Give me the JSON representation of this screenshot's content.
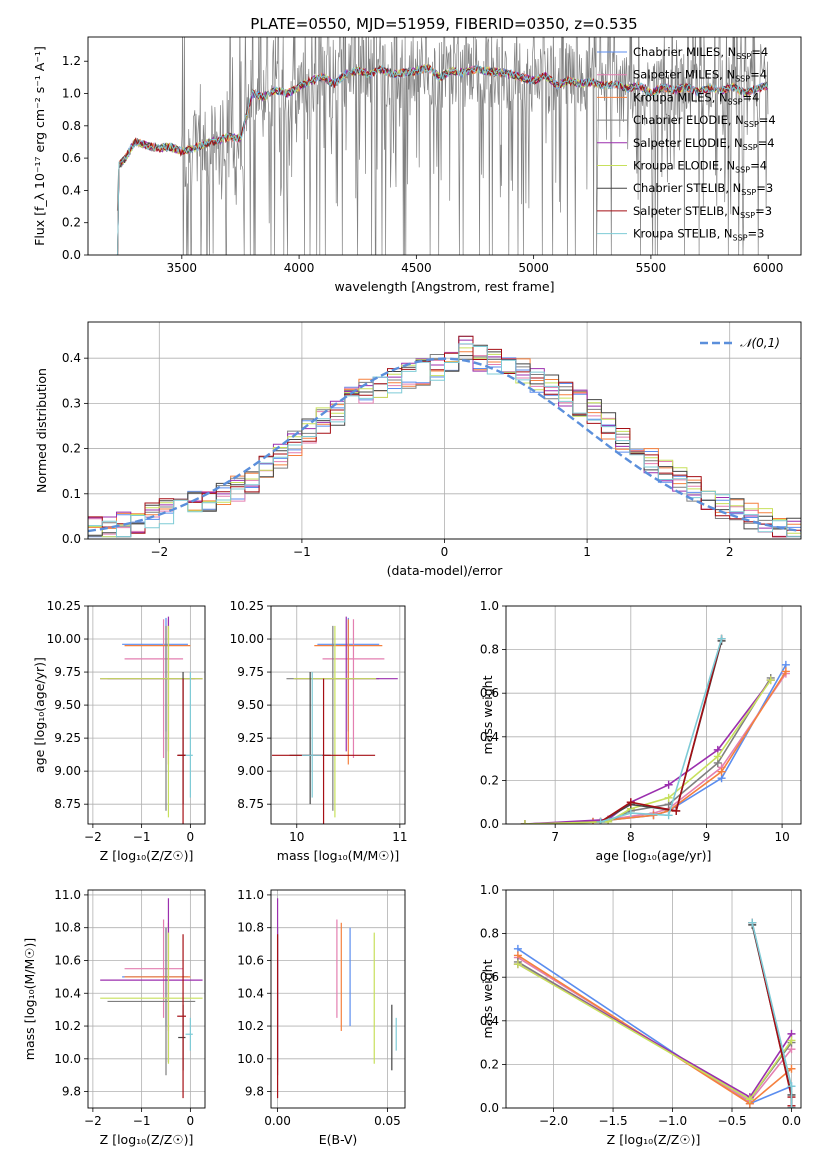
{
  "title": "PLATE=0550, MJD=51959, FIBERID=0350, z=0.535",
  "colors": {
    "Chabrier MILES": "#5b8def",
    "Salpeter MILES": "#e37fb1",
    "Kroupa MILES": "#f5803e",
    "Chabrier ELODIE": "#7f7f7f",
    "Salpeter ELODIE": "#9b2fae",
    "Kroupa ELODIE": "#c7e05c",
    "Chabrier STELIB": "#454545",
    "Salpeter STELIB": "#a50f15",
    "Kroupa STELIB": "#7ecbd6"
  },
  "chart_data": [
    {
      "type": "line",
      "panel": "spectrum",
      "xlabel": "wavelength [Angstrom, rest frame]",
      "ylabel": "Flux [f_λ 10⁻¹⁷ erg cm⁻² s⁻¹ A⁻¹]",
      "xlim": [
        3100,
        6140
      ],
      "ylim": [
        0,
        1.35
      ],
      "xticks": [
        3500,
        4000,
        4500,
        5000,
        5500,
        6000
      ],
      "yticks": [
        0.0,
        0.2,
        0.4,
        0.6,
        0.8,
        1.0,
        1.2
      ],
      "grid": false,
      "legend_position": "top-right",
      "legend": [
        {
          "label": "Chabrier MILES, N",
          "sub": "SSP",
          "tail": "=4"
        },
        {
          "label": "Salpeter MILES, N",
          "sub": "SSP",
          "tail": "=4"
        },
        {
          "label": "Kroupa MILES, N",
          "sub": "SSP",
          "tail": "=4"
        },
        {
          "label": "Chabrier ELODIE, N",
          "sub": "SSP",
          "tail": "=4"
        },
        {
          "label": "Salpeter ELODIE, N",
          "sub": "SSP",
          "tail": "=4"
        },
        {
          "label": "Kroupa ELODIE, N",
          "sub": "SSP",
          "tail": "=4"
        },
        {
          "label": "Chabrier STELIB, N",
          "sub": "SSP",
          "tail": "=3"
        },
        {
          "label": "Salpeter STELIB, N",
          "sub": "SSP",
          "tail": "=3"
        },
        {
          "label": "Kroupa STELIB, N",
          "sub": "SSP",
          "tail": "=3"
        }
      ],
      "model_points": {
        "x": [
          3220,
          3230,
          3260,
          3300,
          3350,
          3400,
          3450,
          3500,
          3550,
          3600,
          3650,
          3700,
          3750,
          3800,
          3850,
          3900,
          3950,
          4000,
          4050,
          4100,
          4150,
          4200,
          4250,
          4300,
          4350,
          4400,
          4450,
          4500,
          4550,
          4600,
          4650,
          4700,
          4750,
          4800,
          4850,
          4900,
          4950,
          5000,
          5050,
          5100,
          5150,
          5200,
          5250,
          5300,
          5350,
          5400,
          5450,
          5500,
          5550,
          5600,
          5650,
          5700,
          5750,
          5800,
          5850,
          5900,
          5950,
          6000
        ],
        "y": [
          0.0,
          0.55,
          0.6,
          0.7,
          0.68,
          0.66,
          0.67,
          0.64,
          0.66,
          0.69,
          0.71,
          0.73,
          0.72,
          1.0,
          0.98,
          1.02,
          1.0,
          1.04,
          1.08,
          1.1,
          1.06,
          1.12,
          1.14,
          1.12,
          1.15,
          1.12,
          1.13,
          1.14,
          1.16,
          1.1,
          1.14,
          1.13,
          1.15,
          1.14,
          1.13,
          1.12,
          1.1,
          1.08,
          1.11,
          1.05,
          1.08,
          1.06,
          1.07,
          1.05,
          1.06,
          1.03,
          1.05,
          1.0,
          1.04,
          1.02,
          1.04,
          1.01,
          1.03,
          1.02,
          1.04,
          1.0,
          1.03,
          1.05
        ]
      }
    },
    {
      "type": "step",
      "panel": "residual-histogram",
      "xlabel": "(data-model)/error",
      "ylabel": "Normed distribution",
      "xlim": [
        -2.5,
        2.5
      ],
      "ylim": [
        0,
        0.48
      ],
      "xticks": [
        -2,
        -1,
        0,
        1,
        2
      ],
      "yticks": [
        0.0,
        0.1,
        0.2,
        0.3,
        0.4
      ],
      "grid": true,
      "legend_position": "top-right",
      "reference_curve": "𝒩(0,1)",
      "bin_width": 0.1,
      "bin_start": -2.5,
      "hist_base": [
        0.02,
        0.02,
        0.03,
        0.04,
        0.05,
        0.06,
        0.07,
        0.08,
        0.09,
        0.1,
        0.11,
        0.13,
        0.16,
        0.18,
        0.21,
        0.24,
        0.26,
        0.28,
        0.31,
        0.33,
        0.34,
        0.35,
        0.36,
        0.37,
        0.38,
        0.39,
        0.42,
        0.4,
        0.39,
        0.38,
        0.37,
        0.35,
        0.34,
        0.32,
        0.3,
        0.28,
        0.25,
        0.22,
        0.19,
        0.17,
        0.15,
        0.13,
        0.11,
        0.09,
        0.07,
        0.06,
        0.05,
        0.04,
        0.03,
        0.02
      ]
    },
    {
      "type": "errorbar",
      "panel": "age-vs-metallicity",
      "xlabel": "Z [log₁₀(Z/Z☉)]",
      "ylabel": "age  [log₁₀(age/yr)]",
      "xlim": [
        -2.1,
        0.3
      ],
      "ylim": [
        8.6,
        10.25
      ],
      "xticks": [
        -2,
        -1,
        0
      ],
      "yticks": [
        8.75,
        9.0,
        9.25,
        9.5,
        9.75,
        10.0,
        10.25
      ],
      "grid": true
    },
    {
      "type": "errorbar",
      "panel": "age-vs-mass",
      "xlabel": "mass [log₁₀(M/M☉)]",
      "xlim": [
        9.75,
        11.05
      ],
      "ylim": [
        8.6,
        10.25
      ],
      "xticks": [
        10,
        11
      ],
      "yticks": [
        8.75,
        9.0,
        9.25,
        9.5,
        9.75,
        10.0,
        10.25
      ],
      "grid": true
    },
    {
      "type": "line",
      "panel": "mass-weight-vs-age",
      "xlabel": "age  [log₁₀(age/yr)]",
      "ylabel": "mass weight",
      "xlim": [
        6.35,
        10.25
      ],
      "ylim": [
        0,
        1.0
      ],
      "xticks": [
        7,
        8,
        9,
        10
      ],
      "yticks": [
        0.0,
        0.2,
        0.4,
        0.6,
        0.8,
        1.0
      ],
      "grid": true,
      "series": [
        {
          "name": "Chabrier MILES",
          "x": [
            6.6,
            7.5,
            8.3,
            8.5,
            9.2,
            10.05
          ],
          "y": [
            0.0,
            0.01,
            0.04,
            0.06,
            0.21,
            0.73
          ]
        },
        {
          "name": "Salpeter MILES",
          "x": [
            6.6,
            7.5,
            8.3,
            8.5,
            9.2,
            10.05
          ],
          "y": [
            0.0,
            0.01,
            0.05,
            0.07,
            0.26,
            0.69
          ]
        },
        {
          "name": "Kroupa MILES",
          "x": [
            6.6,
            7.5,
            8.3,
            8.5,
            9.2,
            10.05
          ],
          "y": [
            0.0,
            0.01,
            0.04,
            0.06,
            0.24,
            0.7
          ]
        },
        {
          "name": "Chabrier ELODIE",
          "x": [
            6.6,
            7.7,
            8.0,
            8.5,
            9.15,
            9.85
          ],
          "y": [
            0.0,
            0.01,
            0.06,
            0.09,
            0.28,
            0.67
          ]
        },
        {
          "name": "Salpeter ELODIE",
          "x": [
            6.6,
            7.7,
            8.0,
            8.5,
            9.15,
            9.85
          ],
          "y": [
            0.0,
            0.02,
            0.1,
            0.18,
            0.34,
            0.66
          ]
        },
        {
          "name": "Kroupa ELODIE",
          "x": [
            6.6,
            7.7,
            8.0,
            8.5,
            9.15,
            9.85
          ],
          "y": [
            0.0,
            0.01,
            0.07,
            0.12,
            0.31,
            0.66
          ]
        },
        {
          "name": "Chabrier STELIB",
          "x": [
            7.6,
            8.0,
            8.6,
            9.2
          ],
          "y": [
            0.01,
            0.09,
            0.06,
            0.84
          ]
        },
        {
          "name": "Salpeter STELIB",
          "x": [
            7.6,
            8.0,
            8.6,
            9.2
          ],
          "y": [
            0.01,
            0.1,
            0.06,
            0.85
          ]
        },
        {
          "name": "Kroupa STELIB",
          "x": [
            7.6,
            8.0,
            8.5,
            9.2
          ],
          "y": [
            0.01,
            0.05,
            0.04,
            0.85
          ]
        }
      ]
    },
    {
      "type": "errorbar",
      "panel": "mass-vs-metallicity",
      "xlabel": "Z [log₁₀(Z/Z☉)]",
      "ylabel": "mass [log₁₀(M/M☉)]",
      "xlim": [
        -2.1,
        0.3
      ],
      "ylim": [
        9.7,
        11.03
      ],
      "xticks": [
        -2,
        -1,
        0
      ],
      "yticks": [
        9.8,
        10.0,
        10.2,
        10.4,
        10.6,
        10.8,
        11.0
      ],
      "grid": true
    },
    {
      "type": "errorbar",
      "panel": "mass-vs-ebv",
      "xlabel": "E(B-V)",
      "xlim": [
        -0.003,
        0.058
      ],
      "ylim": [
        9.7,
        11.03
      ],
      "xticks": [
        0.0,
        0.05
      ],
      "xtick_labels": [
        "0.00",
        "0.05"
      ],
      "yticks": [
        9.8,
        10.0,
        10.2,
        10.4,
        10.6,
        10.8,
        11.0
      ],
      "grid": true
    },
    {
      "type": "line",
      "panel": "mass-weight-vs-metallicity",
      "xlabel": "Z [log₁₀(Z/Z☉)]",
      "ylabel": "mass weight",
      "xlim": [
        -2.4,
        0.08
      ],
      "ylim": [
        0,
        1.0
      ],
      "xticks": [
        -2.0,
        -1.5,
        -1.0,
        -0.5,
        0.0
      ],
      "xtick_labels": [
        "−2.0",
        "−1.5",
        "−1.0",
        "−0.5",
        "0.0"
      ],
      "yticks": [
        0.0,
        0.2,
        0.4,
        0.6,
        0.8,
        1.0
      ],
      "grid": true,
      "series": [
        {
          "name": "Chabrier MILES",
          "x": [
            -2.3,
            -0.35,
            0.0
          ],
          "y": [
            0.73,
            0.02,
            0.1
          ]
        },
        {
          "name": "Salpeter MILES",
          "x": [
            -2.3,
            -0.35,
            0.0
          ],
          "y": [
            0.69,
            0.03,
            0.27
          ]
        },
        {
          "name": "Kroupa MILES",
          "x": [
            -2.3,
            -0.35,
            0.0
          ],
          "y": [
            0.7,
            0.02,
            0.18
          ]
        },
        {
          "name": "Chabrier ELODIE",
          "x": [
            -2.3,
            -0.35,
            0.0
          ],
          "y": [
            0.67,
            0.04,
            0.3
          ]
        },
        {
          "name": "Salpeter ELODIE",
          "x": [
            -2.3,
            -0.35,
            0.0
          ],
          "y": [
            0.66,
            0.05,
            0.34
          ]
        },
        {
          "name": "Kroupa ELODIE",
          "x": [
            -2.3,
            -0.35,
            0.0
          ],
          "y": [
            0.66,
            0.04,
            0.31
          ]
        },
        {
          "name": "Chabrier STELIB",
          "x": [
            -0.33,
            0.0,
            0.0
          ],
          "y": [
            0.84,
            0.06,
            0.0
          ]
        },
        {
          "name": "Salpeter STELIB",
          "x": [
            -0.33,
            0.0,
            0.0
          ],
          "y": [
            0.85,
            0.05,
            0.01
          ]
        },
        {
          "name": "Kroupa STELIB",
          "x": [
            -0.33,
            0.0,
            0.0
          ],
          "y": [
            0.85,
            0.1,
            0.0
          ]
        }
      ]
    }
  ],
  "param_points": [
    {
      "name": "Chabrier MILES",
      "Z": -0.5,
      "Zerr": 0.9,
      "age": 9.96,
      "ageLo": 9.3,
      "ageHi": 10.16,
      "mass": 10.5,
      "massErr": 0.3,
      "ebv": 0.033
    },
    {
      "name": "Salpeter MILES",
      "Z": -0.55,
      "Zerr": 0.8,
      "age": 9.85,
      "ageLo": 9.1,
      "ageHi": 10.15,
      "mass": 10.55,
      "massErr": 0.3,
      "ebv": 0.027
    },
    {
      "name": "Kroupa MILES",
      "Z": -0.45,
      "Zerr": 0.9,
      "age": 9.95,
      "ageLo": 9.05,
      "ageHi": 10.15,
      "mass": 10.5,
      "massErr": 0.33,
      "ebv": 0.029
    },
    {
      "name": "Chabrier ELODIE",
      "Z": -0.5,
      "Zerr": 1.2,
      "age": 9.7,
      "ageLo": 8.7,
      "ageHi": 10.1,
      "mass": 10.35,
      "massErr": 0.45,
      "ebv": 0.0
    },
    {
      "name": "Salpeter ELODIE",
      "Z": -0.45,
      "Zerr": 1.4,
      "age": 9.7,
      "ageLo": 9.15,
      "ageHi": 10.17,
      "mass": 10.48,
      "massErr": 0.5,
      "ebv": 0.0
    },
    {
      "name": "Kroupa ELODIE",
      "Z": -0.45,
      "Zerr": 1.4,
      "age": 9.7,
      "ageLo": 8.65,
      "ageHi": 10.1,
      "mass": 10.37,
      "massErr": 0.4,
      "ebv": 0.044
    },
    {
      "name": "Chabrier STELIB",
      "Z": -0.15,
      "Zerr": 0.1,
      "age": 9.12,
      "ageLo": 8.75,
      "ageHi": 9.75,
      "mass": 10.13,
      "massErr": 0.2,
      "ebv": 0.052
    },
    {
      "name": "Salpeter STELIB",
      "Z": -0.15,
      "Zerr": 0.12,
      "age": 9.12,
      "ageLo": 8.6,
      "ageHi": 9.7,
      "mass": 10.26,
      "massErr": 0.5,
      "ebv": 0.0
    },
    {
      "name": "Kroupa STELIB",
      "Z": 0.0,
      "Zerr": 0.1,
      "age": 9.12,
      "ageLo": 8.8,
      "ageHi": 9.75,
      "mass": 10.15,
      "massErr": 0.1,
      "ebv": 0.054
    }
  ]
}
